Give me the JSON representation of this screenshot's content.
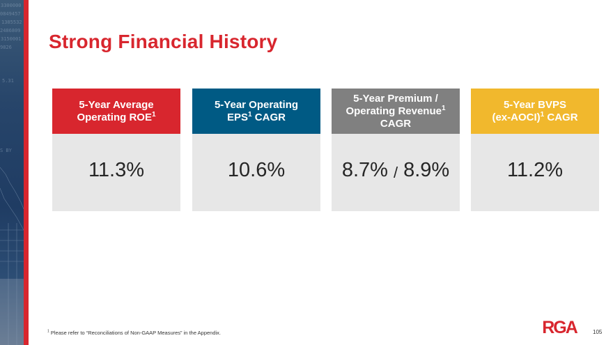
{
  "slide": {
    "title": "Strong Financial History",
    "page_number": "105"
  },
  "cards": [
    {
      "header_lines": [
        "5-Year Average",
        "Operating ROE"
      ],
      "header_sup": "1",
      "value": "11.3%",
      "color": "#d8262e"
    },
    {
      "header_lines": [
        "5-Year Operating",
        "EPS",
        "CAGR"
      ],
      "header_sup": "1",
      "value": "10.6%",
      "color": "#005a84"
    },
    {
      "header_lines": [
        "5-Year Premium /",
        "Operating Revenue",
        "CAGR"
      ],
      "header_sup": "1",
      "value_a": "8.7%",
      "value_sep": "/",
      "value_b": "8.9%",
      "color": "#808080"
    },
    {
      "header_lines": [
        "5-Year BVPS",
        "(ex-AOCI)",
        "CAGR"
      ],
      "header_sup": "1",
      "value": "11.2%",
      "color": "#f1b82d"
    }
  ],
  "footnote": {
    "marker": "1",
    "text": " Please refer to “Reconciliations of Non-GAAP Measures” in the Appendix."
  },
  "logo": {
    "text": "RGA",
    "color": "#d8262e"
  },
  "icons": [
    "rga-logo-icon",
    "financial-background-image"
  ]
}
